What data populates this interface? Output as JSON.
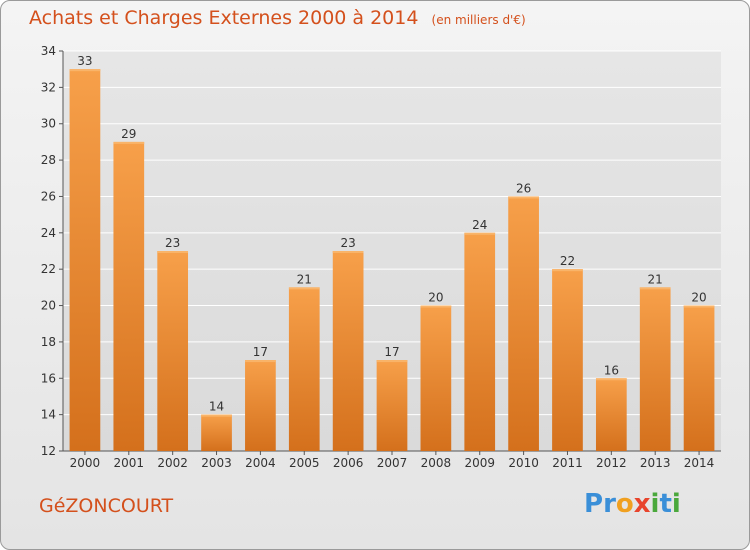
{
  "chart_data": {
    "type": "bar",
    "title": "Achats et Charges Externes 2000 à 2014",
    "unit": "(en milliers d'€)",
    "categories": [
      "2000",
      "2001",
      "2002",
      "2003",
      "2004",
      "2005",
      "2006",
      "2007",
      "2008",
      "2009",
      "2010",
      "2011",
      "2012",
      "2013",
      "2014"
    ],
    "values": [
      33,
      29,
      23,
      14,
      17,
      21,
      23,
      17,
      20,
      24,
      26,
      22,
      16,
      21,
      20
    ],
    "ylim": [
      12,
      34
    ],
    "yticks": [
      12,
      14,
      16,
      18,
      20,
      22,
      24,
      26,
      28,
      30,
      32,
      34
    ],
    "xlabel": "",
    "ylabel": "",
    "grid": true,
    "bar_color_light": "#f7a04a",
    "bar_color_dark": "#d4701c"
  },
  "footer": {
    "commune": "GéZONCOURT",
    "brand_letters": [
      {
        "char": "P",
        "color": "#3a8fd8"
      },
      {
        "char": "r",
        "color": "#3a8fd8"
      },
      {
        "char": "o",
        "color": "#f0a020"
      },
      {
        "char": "x",
        "color": "#e8442c"
      },
      {
        "char": "i",
        "color": "#4aa83c"
      },
      {
        "char": "t",
        "color": "#3a8fd8"
      },
      {
        "char": "i",
        "color": "#4aa83c"
      }
    ]
  },
  "colors": {
    "title": "#d4501c",
    "axis_text": "#333333",
    "grid": "#ffffff"
  }
}
